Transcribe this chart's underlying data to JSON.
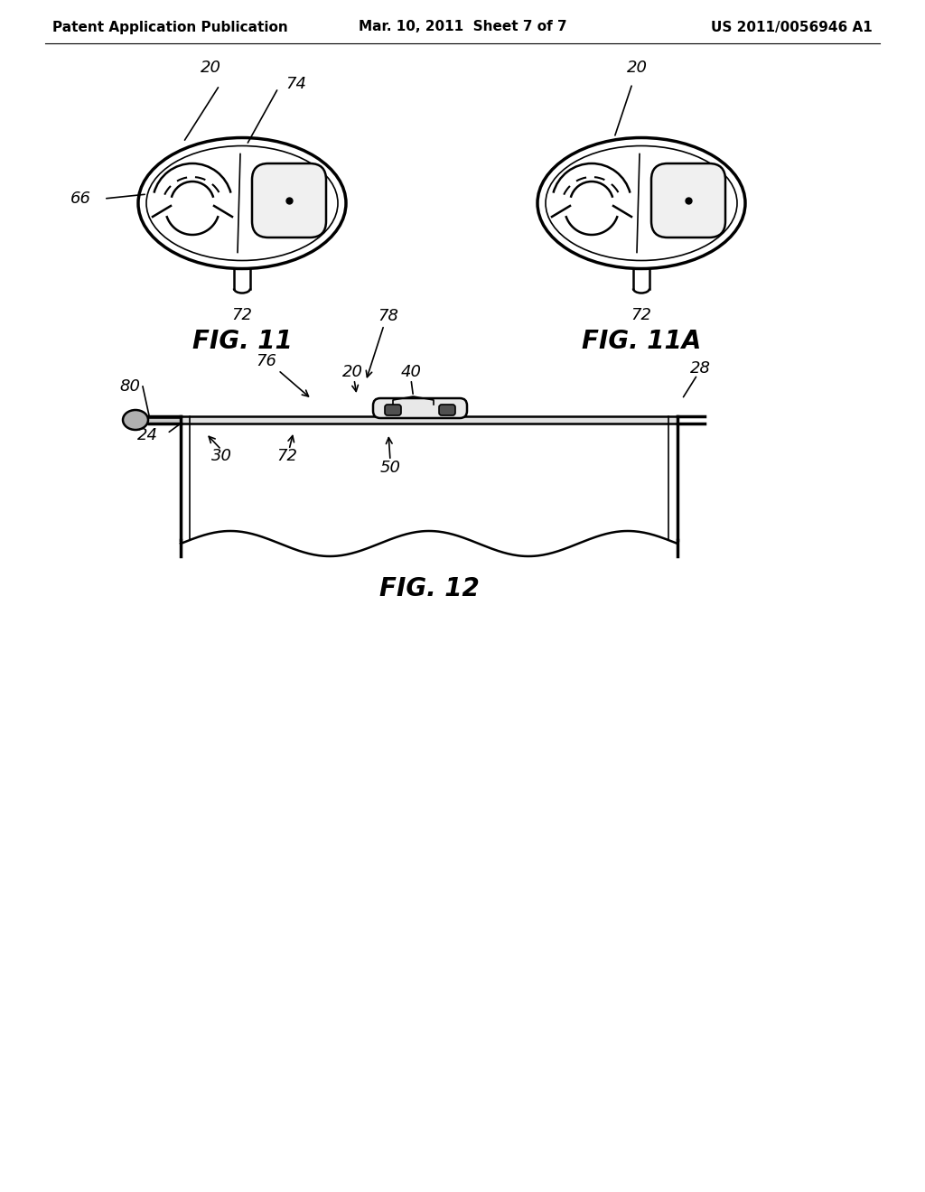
{
  "bg_color": "#ffffff",
  "header_left": "Patent Application Publication",
  "header_center": "Mar. 10, 2011  Sheet 7 of 7",
  "header_right": "US 2011/0056946 A1",
  "fig11_title": "FIG. 11",
  "fig11a_title": "FIG. 11A",
  "fig12_title": "FIG. 12",
  "title_fontsize": 20,
  "header_fontsize": 11,
  "label_fontsize": 13
}
